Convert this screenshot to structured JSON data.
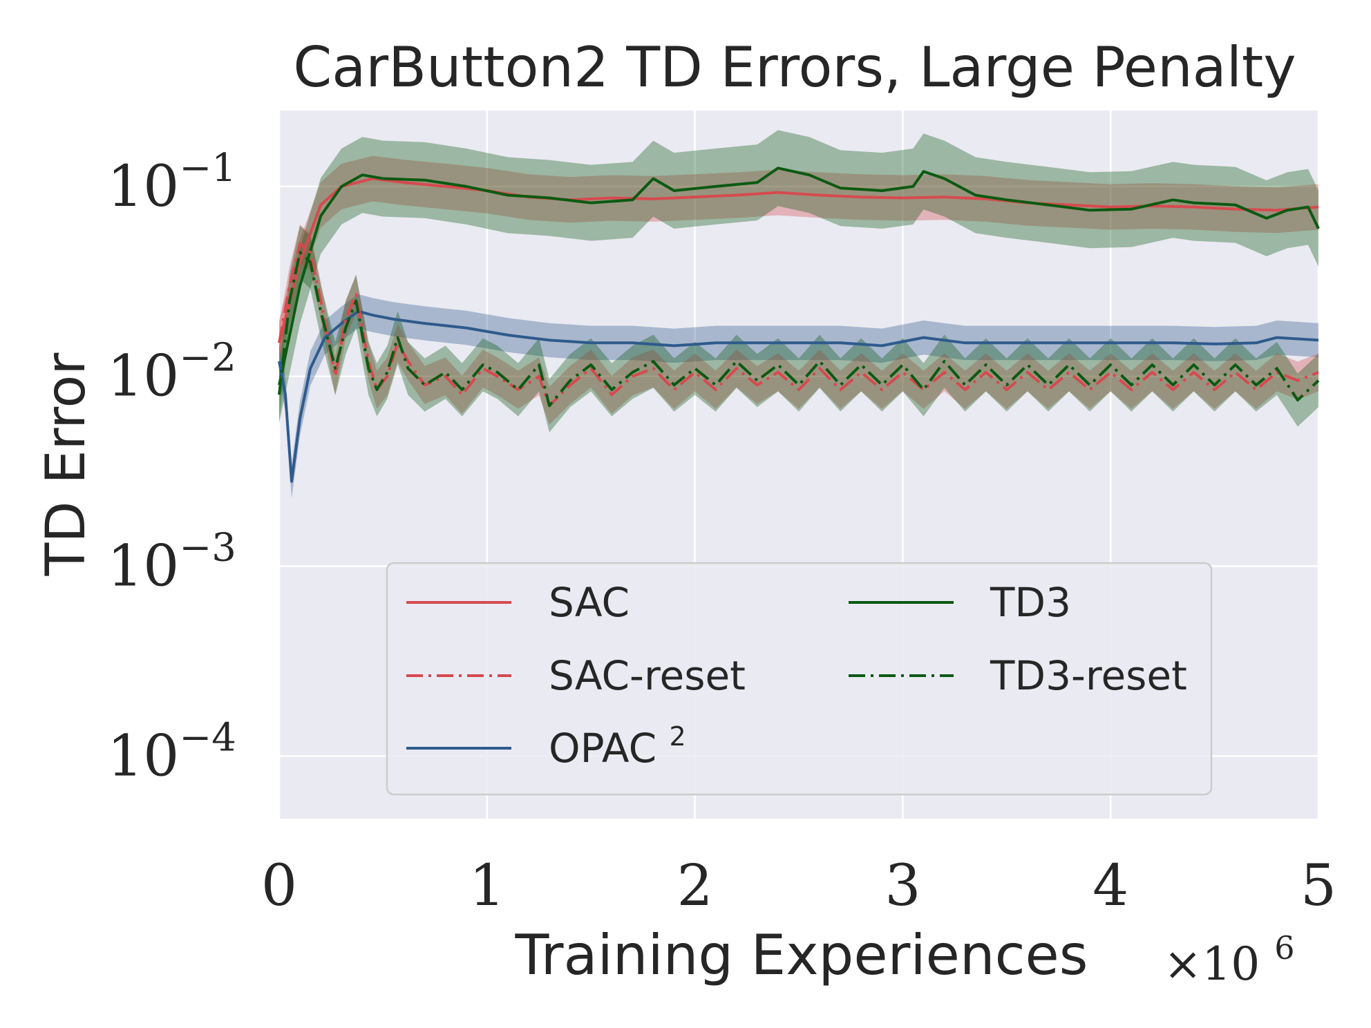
{
  "chart_data": {
    "type": "line",
    "title": "CarButton2 TD Errors, Large Penalty",
    "xlabel": "Training Experiences",
    "ylabel": "TD Error",
    "x_multiplier_base": "×10",
    "x_multiplier_exp": "6",
    "xlim": [
      0,
      5
    ],
    "ylim_log10": [
      -4.33,
      -0.6
    ],
    "yscale": "log",
    "x_ticks": [
      0,
      1,
      2,
      3,
      4,
      5
    ],
    "x_tick_labels": [
      "0",
      "1",
      "2",
      "3",
      "4",
      "5"
    ],
    "y_ticks_log10": [
      -1,
      -2,
      -3,
      -4
    ],
    "y_tick_base": "10",
    "y_tick_exponents": [
      "−1",
      "−2",
      "−3",
      "−4"
    ],
    "grid": true,
    "legend_position": "lower-center",
    "legend": [
      {
        "label": "SAC",
        "color": "#d64a4f",
        "dash": "solid"
      },
      {
        "label": "TD3",
        "color": "#0b5a12",
        "dash": "solid"
      },
      {
        "label": "SAC-reset",
        "color": "#d64a4f",
        "dash": "dashdot"
      },
      {
        "label": "TD3-reset",
        "color": "#0b5a12",
        "dash": "dashdot"
      },
      {
        "label": "OPAC",
        "sup": "2",
        "color": "#2f5a8c",
        "dash": "solid"
      }
    ],
    "series": [
      {
        "name": "SAC",
        "color": "#d64a4f",
        "dash": "solid",
        "band": 0.12,
        "x": [
          0,
          0.1,
          0.2,
          0.3,
          0.45,
          0.6,
          0.8,
          1.0,
          1.2,
          1.4,
          1.6,
          1.8,
          2.0,
          2.2,
          2.4,
          2.6,
          2.8,
          3.0,
          3.2,
          3.4,
          3.6,
          3.8,
          4.0,
          4.2,
          4.4,
          4.6,
          4.8,
          5.0
        ],
        "y": [
          0.015,
          0.04,
          0.08,
          0.1,
          0.11,
          0.105,
          0.1,
          0.095,
          0.088,
          0.085,
          0.087,
          0.086,
          0.088,
          0.09,
          0.093,
          0.09,
          0.088,
          0.087,
          0.088,
          0.086,
          0.082,
          0.08,
          0.078,
          0.079,
          0.078,
          0.076,
          0.075,
          0.078
        ]
      },
      {
        "name": "TD3",
        "color": "#0b5a12",
        "dash": "solid",
        "band": 0.2,
        "x": [
          0,
          0.1,
          0.2,
          0.3,
          0.4,
          0.5,
          0.7,
          0.9,
          1.1,
          1.3,
          1.5,
          1.7,
          1.8,
          1.9,
          2.1,
          2.3,
          2.4,
          2.55,
          2.7,
          2.9,
          3.05,
          3.1,
          3.2,
          3.35,
          3.5,
          3.7,
          3.9,
          4.1,
          4.3,
          4.4,
          4.6,
          4.75,
          4.85,
          4.95,
          5.0
        ],
        "y": [
          0.009,
          0.03,
          0.07,
          0.1,
          0.115,
          0.11,
          0.108,
          0.1,
          0.09,
          0.087,
          0.082,
          0.085,
          0.11,
          0.095,
          0.1,
          0.105,
          0.125,
          0.115,
          0.098,
          0.095,
          0.1,
          0.12,
          0.11,
          0.09,
          0.085,
          0.08,
          0.075,
          0.076,
          0.085,
          0.082,
          0.08,
          0.068,
          0.075,
          0.078,
          0.06
        ]
      },
      {
        "name": "OPAC²",
        "color": "#2f5a8c",
        "dash": "solid",
        "band": 0.09,
        "x": [
          0,
          0.03,
          0.06,
          0.1,
          0.15,
          0.22,
          0.3,
          0.38,
          0.45,
          0.55,
          0.7,
          0.9,
          1.1,
          1.3,
          1.5,
          1.7,
          1.9,
          2.1,
          2.3,
          2.5,
          2.7,
          2.9,
          3.1,
          3.3,
          3.5,
          3.7,
          3.9,
          4.1,
          4.3,
          4.5,
          4.7,
          4.8,
          5.0
        ],
        "y": [
          0.012,
          0.008,
          0.0028,
          0.006,
          0.011,
          0.016,
          0.019,
          0.022,
          0.021,
          0.02,
          0.019,
          0.018,
          0.0165,
          0.0155,
          0.015,
          0.015,
          0.0145,
          0.015,
          0.015,
          0.015,
          0.015,
          0.0145,
          0.016,
          0.015,
          0.015,
          0.015,
          0.015,
          0.015,
          0.015,
          0.0148,
          0.015,
          0.016,
          0.0155
        ]
      },
      {
        "name": "SAC-reset",
        "color": "#d64a4f",
        "dash": "dashdot",
        "band": 0.1,
        "x": [
          0,
          0.05,
          0.1,
          0.15,
          0.2,
          0.27,
          0.32,
          0.37,
          0.43,
          0.47,
          0.52,
          0.57,
          0.62,
          0.7,
          0.8,
          0.88,
          0.98,
          1.05,
          1.15,
          1.25,
          1.3,
          1.4,
          1.5,
          1.6,
          1.7,
          1.8,
          1.9,
          2.0,
          2.1,
          2.2,
          2.3,
          2.4,
          2.5,
          2.6,
          2.7,
          2.8,
          2.9,
          3.0,
          3.1,
          3.2,
          3.3,
          3.4,
          3.5,
          3.6,
          3.7,
          3.8,
          3.9,
          4.0,
          4.1,
          4.2,
          4.3,
          4.4,
          4.5,
          4.6,
          4.7,
          4.8,
          4.9,
          5.0
        ],
        "y": [
          0.015,
          0.03,
          0.05,
          0.045,
          0.025,
          0.01,
          0.02,
          0.027,
          0.012,
          0.0085,
          0.01,
          0.015,
          0.012,
          0.009,
          0.01,
          0.008,
          0.011,
          0.01,
          0.0085,
          0.01,
          0.007,
          0.009,
          0.011,
          0.008,
          0.01,
          0.011,
          0.0085,
          0.0105,
          0.0085,
          0.011,
          0.009,
          0.0105,
          0.0085,
          0.011,
          0.0085,
          0.0105,
          0.0085,
          0.0105,
          0.0085,
          0.0105,
          0.0085,
          0.0105,
          0.0085,
          0.0105,
          0.0085,
          0.0105,
          0.0085,
          0.0105,
          0.0085,
          0.0105,
          0.0085,
          0.0105,
          0.0085,
          0.0105,
          0.0085,
          0.0105,
          0.0095,
          0.0105
        ]
      },
      {
        "name": "TD3-reset",
        "color": "#0b5a12",
        "dash": "dashdot",
        "band": 0.14,
        "x": [
          0,
          0.05,
          0.1,
          0.15,
          0.2,
          0.27,
          0.32,
          0.37,
          0.43,
          0.47,
          0.52,
          0.57,
          0.62,
          0.7,
          0.8,
          0.88,
          0.98,
          1.05,
          1.15,
          1.25,
          1.3,
          1.4,
          1.5,
          1.6,
          1.7,
          1.8,
          1.9,
          2.0,
          2.1,
          2.2,
          2.3,
          2.4,
          2.5,
          2.6,
          2.7,
          2.8,
          2.9,
          3.0,
          3.1,
          3.2,
          3.3,
          3.4,
          3.5,
          3.6,
          3.7,
          3.8,
          3.9,
          4.0,
          4.1,
          4.2,
          4.3,
          4.4,
          4.5,
          4.6,
          4.7,
          4.8,
          4.9,
          5.0
        ],
        "y": [
          0.008,
          0.025,
          0.045,
          0.04,
          0.022,
          0.011,
          0.018,
          0.025,
          0.011,
          0.0085,
          0.0105,
          0.016,
          0.011,
          0.009,
          0.0105,
          0.0085,
          0.0115,
          0.0105,
          0.0085,
          0.0115,
          0.007,
          0.0095,
          0.0115,
          0.0085,
          0.0105,
          0.012,
          0.009,
          0.011,
          0.009,
          0.012,
          0.0095,
          0.0115,
          0.009,
          0.012,
          0.009,
          0.0115,
          0.009,
          0.0115,
          0.0085,
          0.012,
          0.009,
          0.0115,
          0.009,
          0.0115,
          0.009,
          0.0115,
          0.009,
          0.0115,
          0.009,
          0.0115,
          0.009,
          0.0115,
          0.009,
          0.0115,
          0.009,
          0.011,
          0.0075,
          0.0095
        ]
      }
    ]
  }
}
